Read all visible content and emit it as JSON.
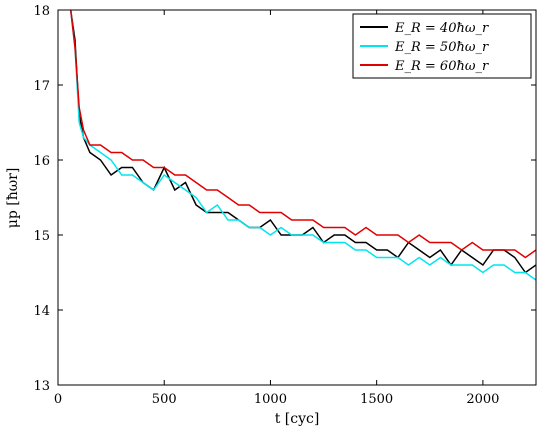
{
  "chart_data": {
    "type": "line",
    "xlabel": "t [cyc]",
    "ylabel": "μp [ħωr]",
    "xlim": [
      0,
      2250
    ],
    "ylim": [
      13,
      18
    ],
    "xticks": [
      0,
      500,
      1000,
      1500,
      2000
    ],
    "yticks": [
      13,
      14,
      15,
      16,
      17,
      18
    ],
    "legend_position": "top-right",
    "grid": false,
    "series": [
      {
        "name": "E_R = 40ħω_r",
        "color": "#000000",
        "x": [
          60,
          80,
          100,
          120,
          150,
          200,
          250,
          300,
          350,
          400,
          450,
          500,
          550,
          600,
          650,
          700,
          750,
          800,
          850,
          900,
          950,
          1000,
          1050,
          1100,
          1150,
          1200,
          1250,
          1300,
          1350,
          1400,
          1450,
          1500,
          1550,
          1600,
          1650,
          1700,
          1750,
          1800,
          1850,
          1900,
          1950,
          2000,
          2050,
          2100,
          2150,
          2200,
          2250
        ],
        "y": [
          18.0,
          17.6,
          16.6,
          16.3,
          16.1,
          16.0,
          15.8,
          15.9,
          15.9,
          15.7,
          15.6,
          15.9,
          15.6,
          15.7,
          15.4,
          15.3,
          15.3,
          15.3,
          15.2,
          15.1,
          15.1,
          15.2,
          15.0,
          15.0,
          15.0,
          15.1,
          14.9,
          15.0,
          15.0,
          14.9,
          14.9,
          14.8,
          14.8,
          14.7,
          14.9,
          14.8,
          14.7,
          14.8,
          14.6,
          14.8,
          14.7,
          14.6,
          14.8,
          14.8,
          14.7,
          14.5,
          14.6
        ]
      },
      {
        "name": "E_R = 50ħω_r",
        "color": "#00e5ee",
        "x": [
          60,
          80,
          100,
          120,
          150,
          200,
          250,
          300,
          350,
          400,
          450,
          500,
          550,
          600,
          650,
          700,
          750,
          800,
          850,
          900,
          950,
          1000,
          1050,
          1100,
          1150,
          1200,
          1250,
          1300,
          1350,
          1400,
          1450,
          1500,
          1550,
          1600,
          1650,
          1700,
          1750,
          1800,
          1850,
          1900,
          1950,
          2000,
          2050,
          2100,
          2150,
          2200,
          2250
        ],
        "y": [
          18.0,
          17.5,
          16.5,
          16.3,
          16.2,
          16.1,
          16.0,
          15.8,
          15.8,
          15.7,
          15.6,
          15.8,
          15.7,
          15.6,
          15.5,
          15.3,
          15.4,
          15.2,
          15.2,
          15.1,
          15.1,
          15.0,
          15.1,
          15.0,
          15.0,
          15.0,
          14.9,
          14.9,
          14.9,
          14.8,
          14.8,
          14.7,
          14.7,
          14.7,
          14.6,
          14.7,
          14.6,
          14.7,
          14.6,
          14.6,
          14.6,
          14.5,
          14.6,
          14.6,
          14.5,
          14.5,
          14.4
        ]
      },
      {
        "name": "E_R = 60ħω_r",
        "color": "#e00000",
        "x": [
          60,
          80,
          100,
          120,
          150,
          200,
          250,
          300,
          350,
          400,
          450,
          500,
          550,
          600,
          650,
          700,
          750,
          800,
          850,
          900,
          950,
          1000,
          1050,
          1100,
          1150,
          1200,
          1250,
          1300,
          1350,
          1400,
          1450,
          1500,
          1550,
          1600,
          1650,
          1700,
          1750,
          1800,
          1850,
          1900,
          1950,
          2000,
          2050,
          2100,
          2150,
          2200,
          2250
        ],
        "y": [
          18.0,
          17.5,
          16.7,
          16.4,
          16.2,
          16.2,
          16.1,
          16.1,
          16.0,
          16.0,
          15.9,
          15.9,
          15.8,
          15.8,
          15.7,
          15.6,
          15.6,
          15.5,
          15.4,
          15.4,
          15.3,
          15.3,
          15.3,
          15.2,
          15.2,
          15.2,
          15.1,
          15.1,
          15.1,
          15.0,
          15.1,
          15.0,
          15.0,
          15.0,
          14.9,
          15.0,
          14.9,
          14.9,
          14.9,
          14.8,
          14.9,
          14.8,
          14.8,
          14.8,
          14.8,
          14.7,
          14.8
        ]
      }
    ]
  }
}
